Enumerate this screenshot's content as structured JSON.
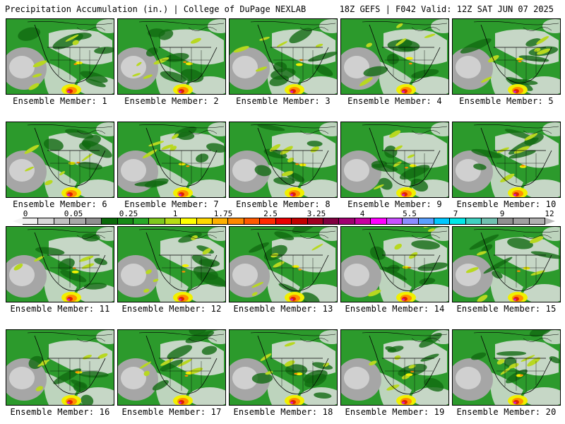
{
  "header": {
    "title": "Precipitation Accumulation (in.) | College of DuPage NEXLAB",
    "valid": "18Z GEFS | F042 Valid: 12Z SAT JUN 07 2025"
  },
  "members": [
    "Ensemble Member: 1",
    "Ensemble Member: 2",
    "Ensemble Member: 3",
    "Ensemble Member: 4",
    "Ensemble Member: 5",
    "Ensemble Member: 6",
    "Ensemble Member: 7",
    "Ensemble Member: 8",
    "Ensemble Member: 9",
    "Ensemble Member: 10",
    "Ensemble Member: 11",
    "Ensemble Member: 12",
    "Ensemble Member: 13",
    "Ensemble Member: 14",
    "Ensemble Member: 15",
    "Ensemble Member: 16",
    "Ensemble Member: 17",
    "Ensemble Member: 18",
    "Ensemble Member: 19",
    "Ensemble Member: 20"
  ],
  "colorbar": {
    "ticks": [
      "0",
      "0.05",
      "0.25",
      "1",
      "1.75",
      "2.5",
      "3.25",
      "4",
      "5.5",
      "7",
      "9",
      "12"
    ],
    "colors": [
      "#f0f0f0",
      "#d8d8d8",
      "#c0c0c0",
      "#a8a8a8",
      "#909090",
      "#0a6a0a",
      "#168a16",
      "#28a828",
      "#7ec81e",
      "#b6dc14",
      "#ffff00",
      "#ffd800",
      "#ffb000",
      "#ff8800",
      "#ff5a00",
      "#ff2a00",
      "#e80000",
      "#c00000",
      "#a00020",
      "#800040",
      "#a00070",
      "#c800a0",
      "#ff00ff",
      "#c850ff",
      "#8c8cff",
      "#5aa0ff",
      "#00c8ff",
      "#00e8e8",
      "#40d0c0",
      "#70c0b0",
      "#909090",
      "#a0a0a0",
      "#b0b0b0"
    ]
  },
  "map_colors": {
    "ocean_gray": "#a6a6a6",
    "light_gray": "#e2e2e2",
    "dark_green": "#126a12",
    "green": "#2c9a2c",
    "yellow_green": "#b8d820",
    "yellow": "#f0f000",
    "orange": "#ff9000",
    "red": "#e02000",
    "magenta": "#d020d0",
    "border": "#000000"
  }
}
